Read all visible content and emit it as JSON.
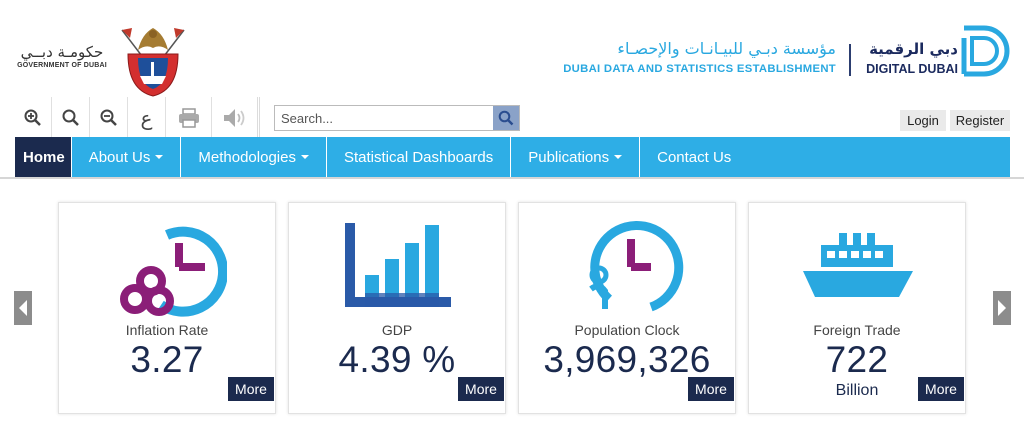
{
  "header": {
    "gov_arabic": "حكومـة دبــي",
    "gov_english": "GOVERNMENT OF DUBAI",
    "dsc_arabic": "مؤسسة دبـي للبيـانـات والإحصـاء",
    "dsc_english": "DUBAI DATA AND STATISTICS ESTABLISHMENT",
    "dd_arabic": "دبي الرقمية",
    "dd_english": "DIGITAL DUBAI"
  },
  "toolbar": {
    "icons": [
      "zoom-in-icon",
      "zoom-reset-icon",
      "zoom-out-icon",
      "arabic-language-icon",
      "print-icon",
      "speaker-icon"
    ],
    "arabic_glyph": "ع",
    "search_placeholder": "Search...",
    "login": "Login",
    "register": "Register"
  },
  "nav": {
    "items": [
      {
        "label": "Home",
        "dropdown": false
      },
      {
        "label": "About Us",
        "dropdown": true
      },
      {
        "label": "Methodologies",
        "dropdown": true
      },
      {
        "label": "Statistical Dashboards",
        "dropdown": false
      },
      {
        "label": "Publications",
        "dropdown": true
      },
      {
        "label": "Contact Us",
        "dropdown": false
      }
    ]
  },
  "cards": [
    {
      "label": "Inflation Rate",
      "value": "3.27",
      "unit": "",
      "more": "More",
      "icon": "inflation-icon"
    },
    {
      "label": "GDP",
      "value": "4.39 %",
      "unit": "",
      "more": "More",
      "icon": "gdp-bar-chart-icon"
    },
    {
      "label": "Population Clock",
      "value": "3,969,326",
      "unit": "",
      "more": "More",
      "icon": "population-clock-icon"
    },
    {
      "label": "Foreign Trade",
      "value": "722",
      "unit": "Billion",
      "more": "More",
      "icon": "ship-icon"
    }
  ],
  "colors": {
    "nav_bg": "#2eaee6",
    "home_bg": "#1b2a4e",
    "accent_blue": "#29a8e0",
    "purple": "#8b1e78",
    "navy": "#1b2a4e"
  }
}
